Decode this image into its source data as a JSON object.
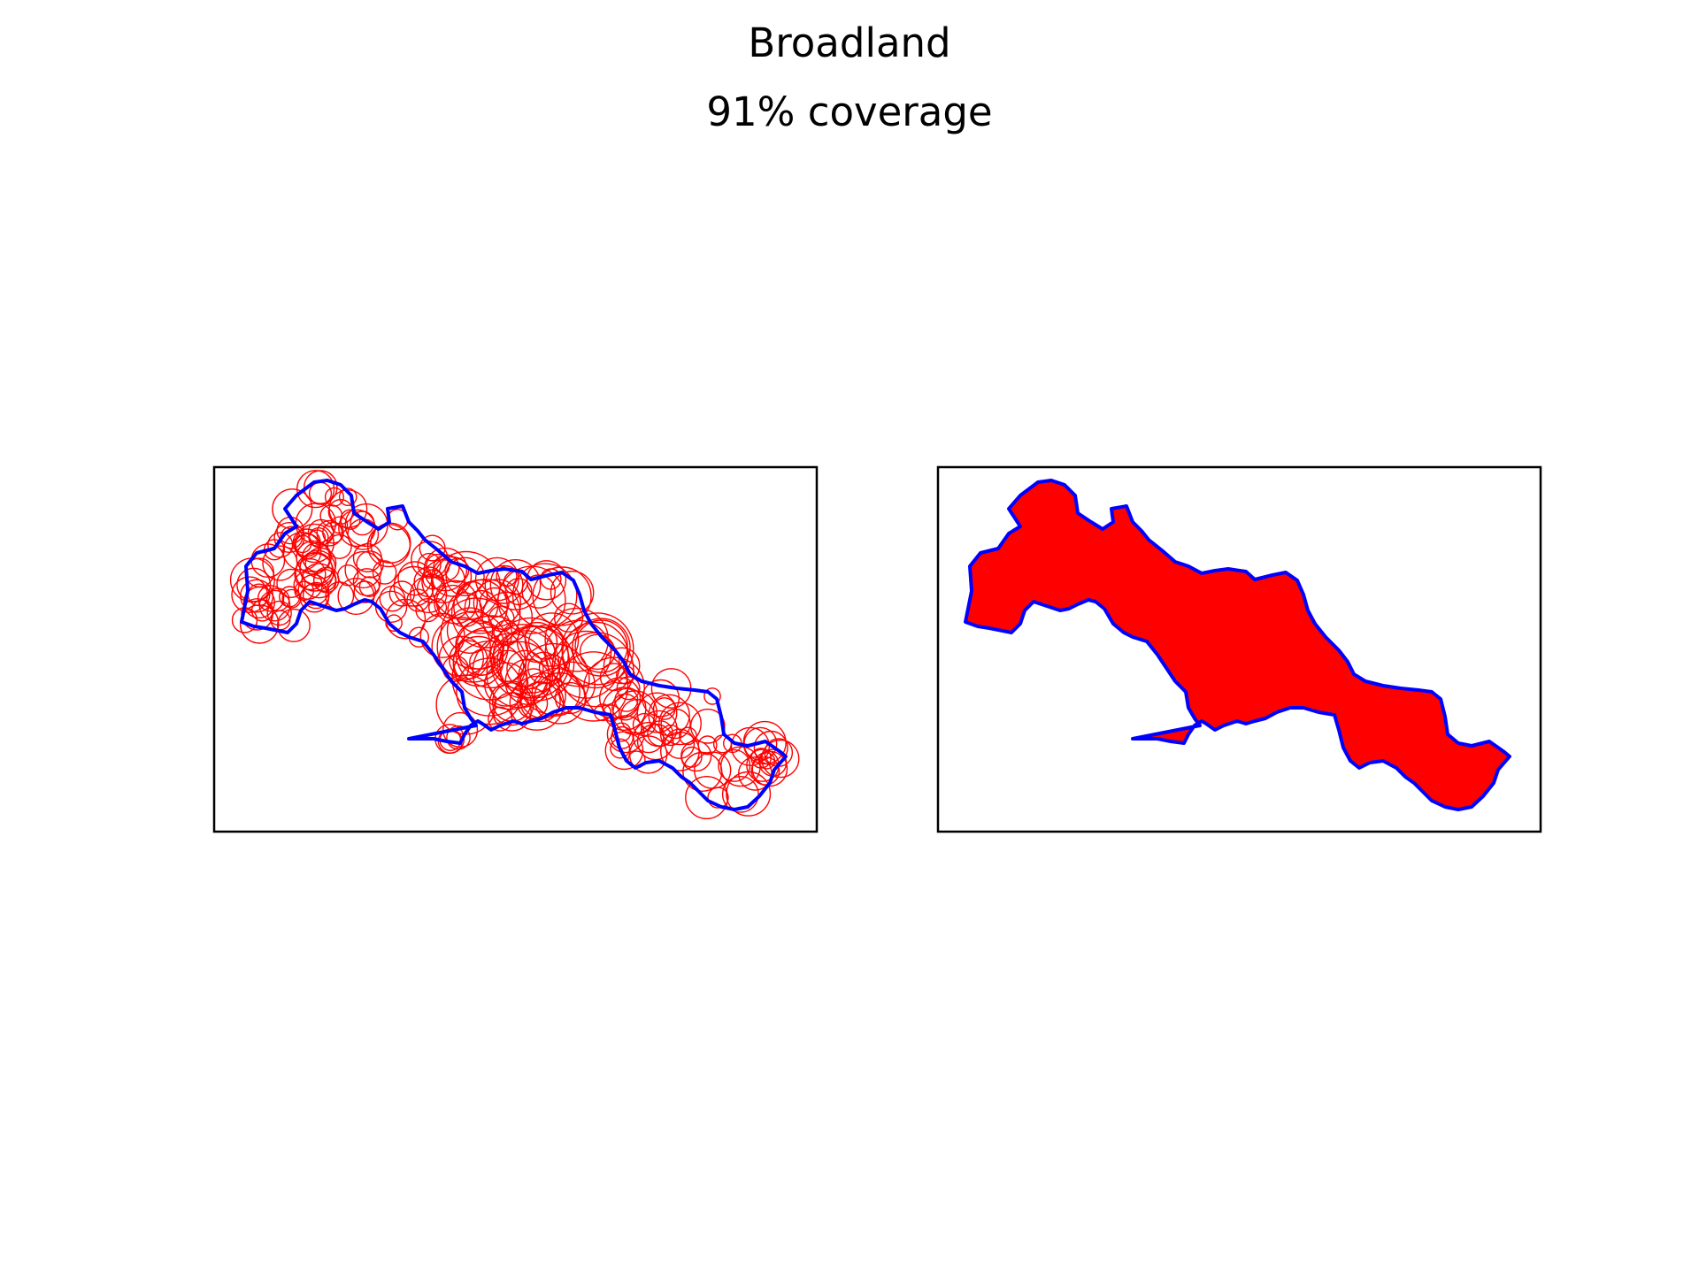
{
  "figure": {
    "title": "Broadland",
    "subtitle": "91% coverage"
  },
  "panels": [
    {
      "name": "circle-packing",
      "fill": "none",
      "circle_color": "#ff0000"
    },
    {
      "name": "union-fill",
      "fill": "#ff0000"
    }
  ],
  "colors": {
    "boundary": "#0000ff",
    "coverage": "#ff0000",
    "frame": "#000000"
  }
}
